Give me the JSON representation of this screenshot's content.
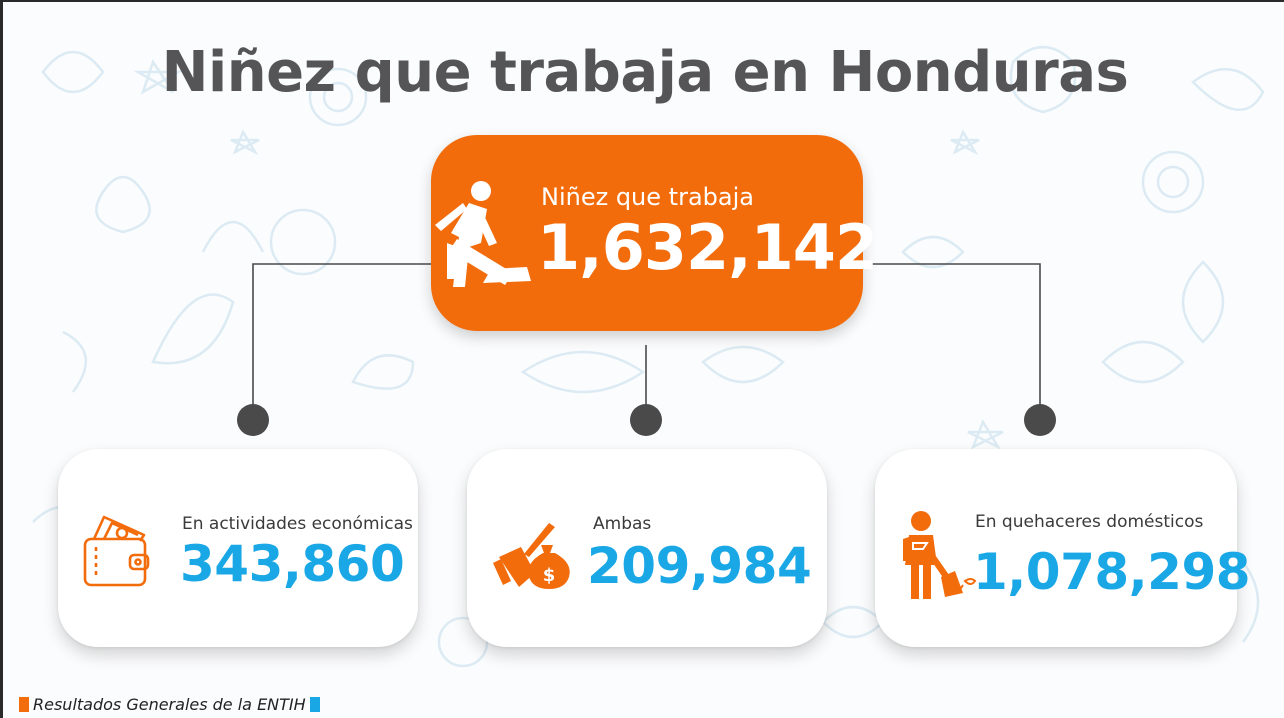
{
  "title": "Niñez que trabaja en Honduras",
  "colors": {
    "accent": "#f36c0c",
    "value_blue": "#1aa7e6",
    "title_gray": "#555558",
    "connector": "#4a4a4a"
  },
  "total": {
    "label": "Niñez que trabaja",
    "value": "1,632,142",
    "icon": "worker-shoveling-icon"
  },
  "categories": [
    {
      "label": "En actividades económicas",
      "value": "343,860",
      "icon": "wallet-cash-icon"
    },
    {
      "label": "Ambas",
      "value": "209,984",
      "icon": "broom-moneybag-icon"
    },
    {
      "label": "En quehaceres domésticos",
      "value": "1,078,298",
      "icon": "child-sweeping-icon"
    }
  ],
  "footer": {
    "text": "Resultados Generales de la ENTIH"
  }
}
